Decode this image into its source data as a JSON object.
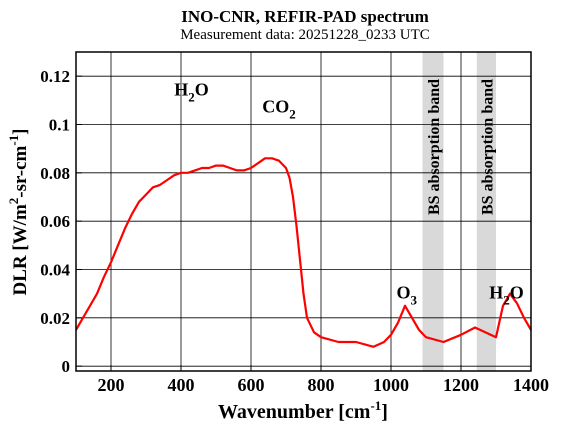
{
  "chart_data": {
    "type": "line",
    "title": "INO-CNR, REFIR-PAD spectrum",
    "subtitle": "Measurement data: 20251228_0233 UTC",
    "xlabel": {
      "base": "Wavenumber [cm",
      "sup": "-1",
      "tail": "]"
    },
    "ylabel": {
      "p1": "DLR [W/m",
      "sup1": "2",
      "p2": "-sr-cm",
      "sup2": "-1",
      "p3": "]"
    },
    "xlim": [
      100,
      1400
    ],
    "ylim": [
      -0.002,
      0.13
    ],
    "x_ticks": [
      200,
      400,
      600,
      800,
      1000,
      1200,
      1400
    ],
    "x_tick_labels": [
      "200",
      "400",
      "600",
      "800",
      "1000",
      "1200",
      "1400"
    ],
    "y_ticks": [
      0,
      0.02,
      0.04,
      0.06,
      0.08,
      0.1,
      0.12
    ],
    "y_tick_labels": [
      "0",
      "0.02",
      "0.04",
      "0.06",
      "0.08",
      "0.1",
      "0.12"
    ],
    "series": [
      {
        "color": "#ff0000",
        "x": [
          100,
          120,
          140,
          160,
          180,
          200,
          220,
          240,
          260,
          280,
          300,
          320,
          340,
          360,
          380,
          400,
          420,
          440,
          460,
          480,
          500,
          520,
          540,
          560,
          580,
          600,
          620,
          640,
          660,
          680,
          700,
          710,
          720,
          730,
          740,
          750,
          760,
          780,
          800,
          850,
          900,
          950,
          980,
          1000,
          1020,
          1040,
          1060,
          1080,
          1100,
          1150,
          1200,
          1240,
          1300,
          1320,
          1340,
          1360,
          1380,
          1400
        ],
        "y": [
          0.015,
          0.02,
          0.025,
          0.03,
          0.037,
          0.043,
          0.05,
          0.057,
          0.063,
          0.068,
          0.071,
          0.074,
          0.075,
          0.077,
          0.079,
          0.08,
          0.08,
          0.081,
          0.082,
          0.082,
          0.083,
          0.083,
          0.082,
          0.081,
          0.081,
          0.082,
          0.084,
          0.086,
          0.086,
          0.085,
          0.082,
          0.078,
          0.07,
          0.058,
          0.044,
          0.03,
          0.02,
          0.014,
          0.012,
          0.01,
          0.01,
          0.008,
          0.01,
          0.013,
          0.018,
          0.025,
          0.02,
          0.015,
          0.012,
          0.01,
          0.013,
          0.016,
          0.012,
          0.025,
          0.03,
          0.026,
          0.02,
          0.015
        ]
      }
    ],
    "annotations": [
      {
        "id": "h2o-left",
        "base": "H",
        "sub": "2",
        "tail": "O",
        "x": 430,
        "y": 0.112
      },
      {
        "id": "co2",
        "base": "CO",
        "sub": "2",
        "tail": "",
        "x": 680,
        "y": 0.105
      },
      {
        "id": "o3",
        "base": "O",
        "sub": "3",
        "tail": "",
        "x": 1045,
        "y": 0.028
      },
      {
        "id": "h2o-right",
        "base": "H",
        "sub": "2",
        "tail": "O",
        "x": 1330,
        "y": 0.028
      }
    ],
    "shaded_bands": [
      {
        "label": "BS absorption band",
        "x0": 1090,
        "x1": 1150,
        "color": "#d9d9d9"
      },
      {
        "label": "BS absorption band",
        "x0": 1245,
        "x1": 1300,
        "color": "#d9d9d9"
      }
    ],
    "grid": true,
    "legend": "none"
  }
}
